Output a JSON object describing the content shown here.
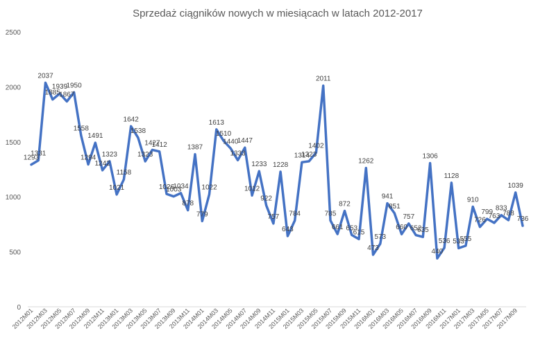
{
  "chart_data": {
    "type": "line",
    "title": "Sprzedaż ciągników nowych w miesiącach w latach 2012-2017",
    "xlabel": "",
    "ylabel": "",
    "ylim": [
      0,
      2500
    ],
    "yticks": [
      "0",
      "500",
      "1000",
      "1500",
      "2000",
      "2500"
    ],
    "grid": false,
    "legend": "none",
    "colors": {
      "line": "#4472C4",
      "text": "#595959",
      "axis": "#D9D9D9"
    },
    "x_tick_labels": [
      "2012M01",
      "2012M03",
      "2012M05",
      "2012M07",
      "2012M09",
      "2012M11",
      "2013M01",
      "2013M03",
      "2013M05",
      "2013M07",
      "2013M09",
      "2013M11",
      "2014M01",
      "2014M03",
      "2014M05",
      "2014M07",
      "2014M09",
      "2014M11",
      "2015M01",
      "2015M03",
      "2015M05",
      "2015M07",
      "2015M09",
      "2015M11",
      "2016M01",
      "2016M03",
      "2016M05",
      "2016M07",
      "2016M09",
      "2016M11",
      "2017M01",
      "2017M03",
      "2017M05",
      "2017M07",
      "2017M09"
    ],
    "series": [
      {
        "values": [
          1293,
          1331,
          2037,
          1885,
          1939,
          1867,
          1950,
          1558,
          1294,
          1491,
          1242,
          1323,
          1021,
          1158,
          1642,
          1538,
          1323,
          1427,
          1412,
          1026,
          1003,
          1034,
          878,
          1387,
          779,
          1022,
          1613,
          1510,
          1440,
          1333,
          1447,
          1012,
          1233,
          922,
          757,
          1228,
          643,
          784,
          1314,
          1323,
          1402,
          2011,
          785,
          661,
          872,
          653,
          615,
          1262,
          473,
          573,
          941,
          851,
          660,
          757,
          652,
          635,
          1306,
          440,
          536,
          1128,
          533,
          555,
          910,
          726,
          799,
          763,
          833,
          788,
          1039,
          736
        ],
        "labels": [
          "1293",
          "1331",
          "2037",
          "1885",
          "1939",
          "1867",
          "1950",
          "1558",
          "1294",
          "1491",
          "1242",
          "1323",
          "1021",
          "1158",
          "1642",
          "1538",
          "1323",
          "1427",
          "1412",
          "1026",
          "1003",
          "1034",
          "878",
          "1387",
          "779",
          "1022",
          "1613",
          "1510",
          "1440",
          "1333",
          "1447",
          "1012",
          "1233",
          "922",
          "757",
          "1228",
          "643",
          "784",
          "1314",
          "1323",
          "1402",
          "2011",
          "785",
          "661",
          "872",
          "653",
          "615",
          "1262",
          "473",
          "573",
          "941",
          "851",
          "660",
          "757",
          "652",
          "635",
          "1306",
          "440",
          "536",
          "1128",
          "533",
          "555",
          "910",
          "726",
          "799",
          "763",
          "833",
          "788",
          "1039",
          "736"
        ]
      }
    ]
  }
}
